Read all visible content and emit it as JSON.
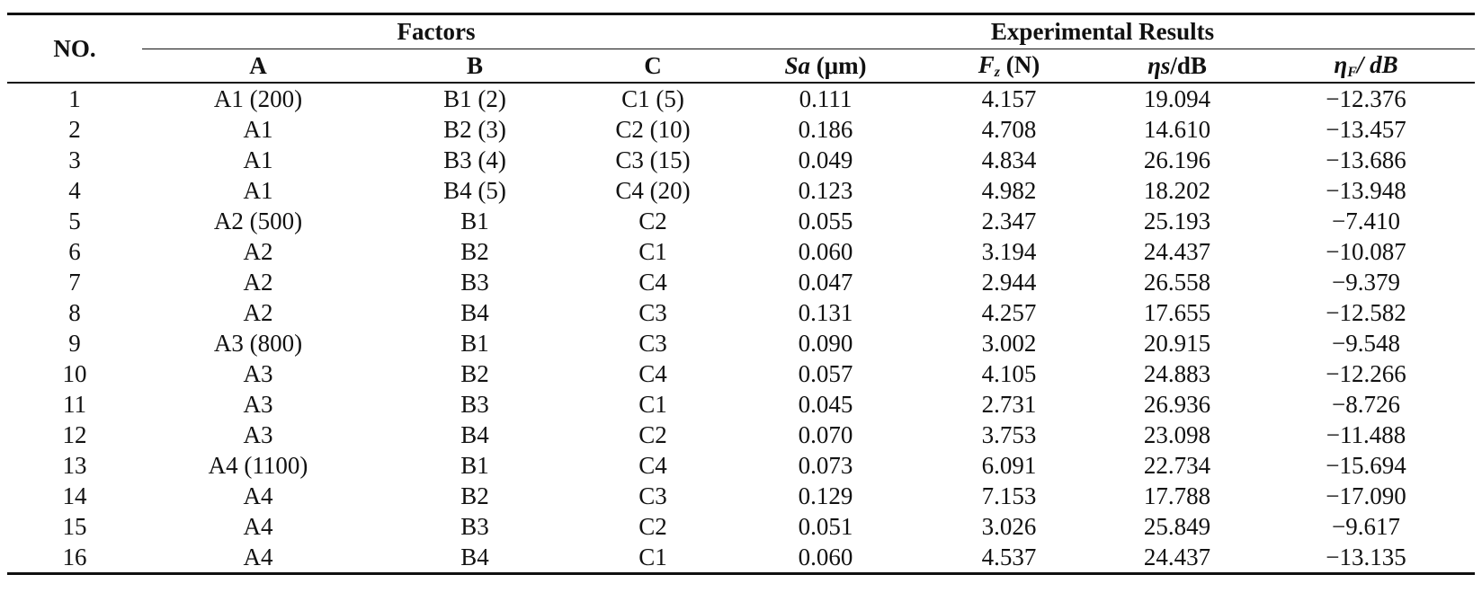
{
  "table": {
    "header": {
      "no": "NO.",
      "factors_group": "Factors",
      "results_group": "Experimental Results",
      "col_a": "A",
      "col_b": "B",
      "col_c": "C",
      "col_sa_symbol": "Sa",
      "col_sa_unit": " (μm)",
      "col_fz_symbol": "F",
      "col_fz_sub": "z",
      "col_fz_unit": " (N)",
      "col_etas_symbol": "ηs",
      "col_etas_unit": "/dB",
      "col_etaf_symbol": "η",
      "col_etaf_sub": "F",
      "col_etaf_unit": "/ dB"
    },
    "rows": [
      {
        "no": "1",
        "a": "A1 (200)",
        "b": "B1 (2)",
        "c": "C1 (5)",
        "sa": "0.111",
        "fz": "4.157",
        "etas": "19.094",
        "etaf": "−12.376"
      },
      {
        "no": "2",
        "a": "A1",
        "b": "B2 (3)",
        "c": "C2 (10)",
        "sa": "0.186",
        "fz": "4.708",
        "etas": "14.610",
        "etaf": "−13.457"
      },
      {
        "no": "3",
        "a": "A1",
        "b": "B3 (4)",
        "c": "C3 (15)",
        "sa": "0.049",
        "fz": "4.834",
        "etas": "26.196",
        "etaf": "−13.686"
      },
      {
        "no": "4",
        "a": "A1",
        "b": "B4 (5)",
        "c": "C4 (20)",
        "sa": "0.123",
        "fz": "4.982",
        "etas": "18.202",
        "etaf": "−13.948"
      },
      {
        "no": "5",
        "a": "A2 (500)",
        "b": "B1",
        "c": "C2",
        "sa": "0.055",
        "fz": "2.347",
        "etas": "25.193",
        "etaf": "−7.410"
      },
      {
        "no": "6",
        "a": "A2",
        "b": "B2",
        "c": "C1",
        "sa": "0.060",
        "fz": "3.194",
        "etas": "24.437",
        "etaf": "−10.087"
      },
      {
        "no": "7",
        "a": "A2",
        "b": "B3",
        "c": "C4",
        "sa": "0.047",
        "fz": "2.944",
        "etas": "26.558",
        "etaf": "−9.379"
      },
      {
        "no": "8",
        "a": "A2",
        "b": "B4",
        "c": "C3",
        "sa": "0.131",
        "fz": "4.257",
        "etas": "17.655",
        "etaf": "−12.582"
      },
      {
        "no": "9",
        "a": "A3 (800)",
        "b": "B1",
        "c": "C3",
        "sa": "0.090",
        "fz": "3.002",
        "etas": "20.915",
        "etaf": "−9.548"
      },
      {
        "no": "10",
        "a": "A3",
        "b": "B2",
        "c": "C4",
        "sa": "0.057",
        "fz": "4.105",
        "etas": "24.883",
        "etaf": "−12.266"
      },
      {
        "no": "11",
        "a": "A3",
        "b": "B3",
        "c": "C1",
        "sa": "0.045",
        "fz": "2.731",
        "etas": "26.936",
        "etaf": "−8.726"
      },
      {
        "no": "12",
        "a": "A3",
        "b": "B4",
        "c": "C2",
        "sa": "0.070",
        "fz": "3.753",
        "etas": "23.098",
        "etaf": "−11.488"
      },
      {
        "no": "13",
        "a": "A4 (1100)",
        "b": "B1",
        "c": "C4",
        "sa": "0.073",
        "fz": "6.091",
        "etas": "22.734",
        "etaf": "−15.694"
      },
      {
        "no": "14",
        "a": "A4",
        "b": "B2",
        "c": "C3",
        "sa": "0.129",
        "fz": "7.153",
        "etas": "17.788",
        "etaf": "−17.090"
      },
      {
        "no": "15",
        "a": "A4",
        "b": "B3",
        "c": "C2",
        "sa": "0.051",
        "fz": "3.026",
        "etas": "25.849",
        "etaf": "−9.617"
      },
      {
        "no": "16",
        "a": "A4",
        "b": "B4",
        "c": "C1",
        "sa": "0.060",
        "fz": "4.537",
        "etas": "24.437",
        "etaf": "−13.135"
      }
    ]
  }
}
